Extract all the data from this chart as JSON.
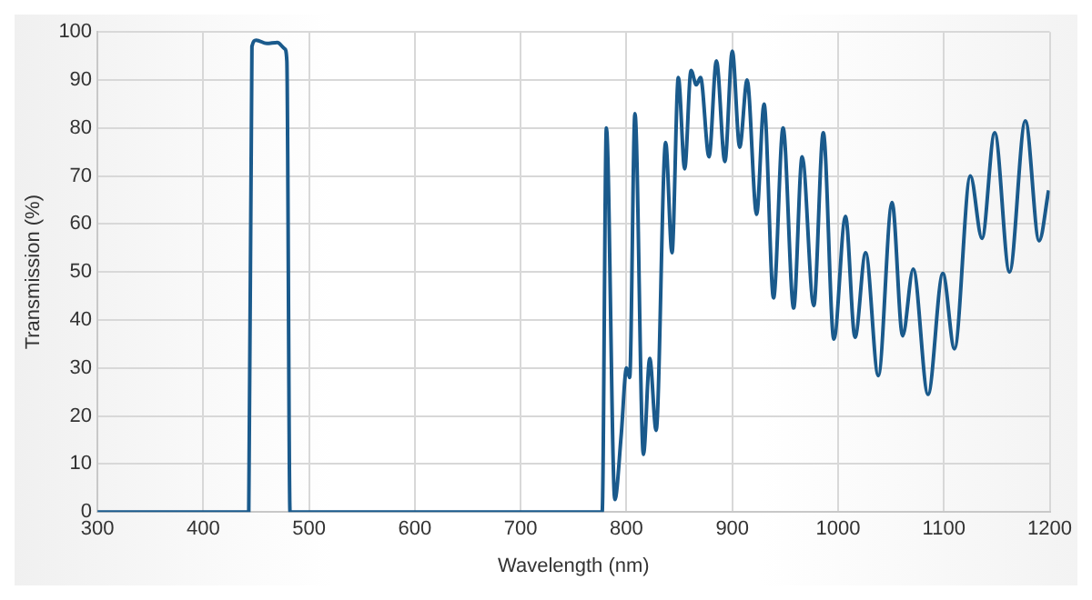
{
  "chart_data": {
    "type": "line",
    "xlabel": "Wavelength (nm)",
    "ylabel": "Transmission (%)",
    "x": [
      300,
      443,
      446,
      450,
      460,
      470,
      477,
      479,
      482,
      777,
      781,
      789,
      795,
      800,
      803,
      808,
      816,
      822,
      828,
      837,
      843,
      849,
      855,
      861,
      866,
      870,
      878,
      885,
      893,
      900,
      907,
      914,
      923,
      930,
      939,
      948,
      958,
      966,
      977,
      986,
      996,
      1007,
      1016,
      1026,
      1038,
      1051,
      1061,
      1071,
      1085,
      1099,
      1110,
      1125,
      1136,
      1148,
      1162,
      1177,
      1190,
      1199
    ],
    "series": [
      {
        "color": "#1a5a8c",
        "values": [
          0,
          0,
          97,
          98.3,
          97.6,
          97.8,
          96.5,
          94,
          0,
          0,
          80,
          2.6,
          16,
          30,
          28,
          83,
          12,
          32,
          17,
          77,
          54,
          90.5,
          71.5,
          92,
          89,
          90.5,
          74,
          94,
          73,
          96,
          76,
          90,
          62,
          85,
          44.6,
          80,
          42.5,
          74,
          43,
          79,
          36,
          61.6,
          36.4,
          54,
          28.4,
          64.5,
          36.7,
          50.6,
          24.5,
          49.7,
          34,
          70,
          57,
          79,
          50,
          81.5,
          56.5,
          67
        ]
      }
    ],
    "xlim": [
      300,
      1200
    ],
    "xticks": [
      300,
      400,
      500,
      600,
      700,
      800,
      900,
      1000,
      1100,
      1200
    ],
    "ylim": [
      0,
      100
    ],
    "yticks": [
      0,
      10,
      20,
      30,
      40,
      50,
      60,
      70,
      80,
      90,
      100
    ],
    "grid": true,
    "legend": false,
    "marker": "none",
    "line_style": "solid"
  }
}
